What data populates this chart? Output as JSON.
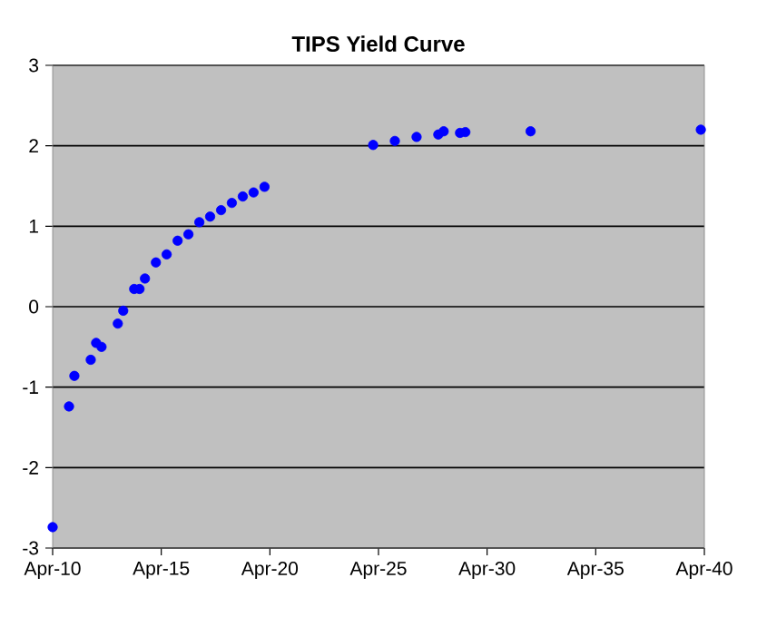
{
  "chart_data": {
    "type": "scatter",
    "title": "TIPS Yield Curve",
    "x": [
      "2010-04-15",
      "2011-01-15",
      "2011-04-15",
      "2012-01-15",
      "2012-04-15",
      "2012-07-15",
      "2013-04-15",
      "2013-07-15",
      "2014-01-15",
      "2014-04-15",
      "2014-07-15",
      "2015-01-15",
      "2015-07-15",
      "2016-01-15",
      "2016-07-15",
      "2017-01-15",
      "2017-07-15",
      "2018-01-15",
      "2018-07-15",
      "2019-01-15",
      "2019-07-15",
      "2020-01-15",
      "2025-01-15",
      "2026-01-15",
      "2027-01-15",
      "2028-01-15",
      "2028-04-15",
      "2029-01-15",
      "2029-04-15",
      "2032-04-15",
      "2040-02-15"
    ],
    "values": [
      -2.74,
      -1.24,
      -0.86,
      -0.66,
      -0.45,
      -0.5,
      -0.21,
      -0.05,
      0.22,
      0.22,
      0.35,
      0.55,
      0.65,
      0.82,
      0.9,
      1.05,
      1.12,
      1.2,
      1.29,
      1.37,
      1.42,
      1.49,
      2.01,
      2.06,
      2.11,
      2.14,
      2.18,
      2.16,
      2.17,
      2.18,
      2.2
    ],
    "color": "#0000ff",
    "marker": "circle",
    "grid": "y",
    "xlim": [
      "2010-04-15",
      "2040-04-15"
    ],
    "xticks": [
      {
        "value": "2010-04-15",
        "label": "Apr-10"
      },
      {
        "value": "2015-04-15",
        "label": "Apr-15"
      },
      {
        "value": "2020-04-15",
        "label": "Apr-20"
      },
      {
        "value": "2025-04-15",
        "label": "Apr-25"
      },
      {
        "value": "2030-04-15",
        "label": "Apr-30"
      },
      {
        "value": "2035-04-15",
        "label": "Apr-35"
      },
      {
        "value": "2040-04-15",
        "label": "Apr-40"
      }
    ],
    "ylim": [
      -3,
      3
    ],
    "yticks": [
      -3,
      -2,
      -1,
      0,
      1,
      2,
      3
    ]
  }
}
